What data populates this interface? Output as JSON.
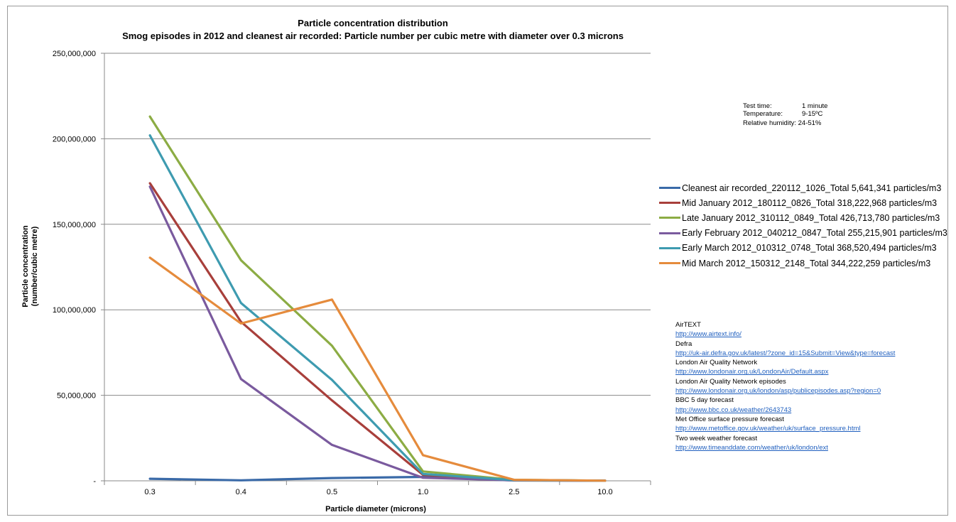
{
  "chart_data": {
    "type": "line",
    "title": "Particle concentration distribution",
    "subtitle": "Smog episodes in 2012 and cleanest air recorded: Particle number per cubic metre with diameter over 0.3 microns",
    "xlabel": "Particle diameter (microns)",
    "ylabel_line1": "Particle concentration",
    "ylabel_line2": "(number/cubic metre)",
    "categories": [
      "0.3",
      "0.4",
      "0.5",
      "1.0",
      "2.5",
      "10.0"
    ],
    "ylim": [
      0,
      250000000
    ],
    "y_ticks": [
      {
        "value": 0,
        "label": "-"
      },
      {
        "value": 50000000,
        "label": "50,000,000"
      },
      {
        "value": 100000000,
        "label": "100,000,000"
      },
      {
        "value": 150000000,
        "label": "150,000,000"
      },
      {
        "value": 200000000,
        "label": "200,000,000"
      },
      {
        "value": 250000000,
        "label": "250,000,000"
      }
    ],
    "grid": true,
    "legend_position": "right",
    "series": [
      {
        "name": "Cleanest air recorded_220112_1026_Total 5,641,341 particles/m3",
        "color": "#3a6aa8",
        "values": [
          1200000,
          300000,
          1600000,
          2300000,
          200000,
          100000
        ]
      },
      {
        "name": "Mid January 2012_180112_0826_Total 318,222,968 particles/m3",
        "color": "#a83f3b",
        "values": [
          174000000,
          93000000,
          47000000,
          3500000,
          400000,
          100000
        ]
      },
      {
        "name": "Late January 2012_310112_0849_Total 426,713,780 particles/m3",
        "color": "#8cac44",
        "values": [
          213000000,
          129000000,
          79000000,
          5500000,
          600000,
          100000
        ]
      },
      {
        "name": "Early February 2012_040212_0847_Total 255,215,901 particles/m3",
        "color": "#7a5a9e",
        "values": [
          172000000,
          59500000,
          21000000,
          1800000,
          300000,
          100000
        ]
      },
      {
        "name": "Early March 2012_010312_0748_Total 368,520,494 particles/m3",
        "color": "#3e9bb0",
        "values": [
          202000000,
          104000000,
          59000000,
          4000000,
          400000,
          100000
        ]
      },
      {
        "name": "Mid March 2012_150312_2148_Total 344,222,259 particles/m3",
        "color": "#e58b3c",
        "values": [
          130500000,
          92000000,
          106000000,
          15000000,
          600000,
          100000
        ]
      }
    ]
  },
  "conditions": [
    {
      "key": "Test time:",
      "value": "1 minute"
    },
    {
      "key": "Temperature:",
      "value": "9-15ºC"
    },
    {
      "key": "Relative humidity:",
      "value": "24-51%"
    }
  ],
  "links": [
    {
      "label": "AirTEXT",
      "url": "http://www.airtext.info/"
    },
    {
      "label": "Defra",
      "url": "http://uk-air.defra.gov.uk/latest/?zone_id=15&Submit=View&type=forecast"
    },
    {
      "label": "London Air  Quality Network",
      "url": "http://www.londonair.org.uk/LondonAir/Default.aspx"
    },
    {
      "label": "London Air Quality Network episodes",
      "url": "http://www.londonair.org.uk/london/asp/publicepisodes.asp?region=0"
    },
    {
      "label": "BBC 5 day forecast",
      "url": "http://www.bbc.co.uk/weather/2643743"
    },
    {
      "label": "Met Office surface pressure forecast",
      "url": "http://www.metoffice.gov.uk/weather/uk/surface_pressure.html"
    },
    {
      "label": "Two week weather forecast",
      "url": "http://www.timeanddate.com/weather/uk/london/ext"
    }
  ]
}
